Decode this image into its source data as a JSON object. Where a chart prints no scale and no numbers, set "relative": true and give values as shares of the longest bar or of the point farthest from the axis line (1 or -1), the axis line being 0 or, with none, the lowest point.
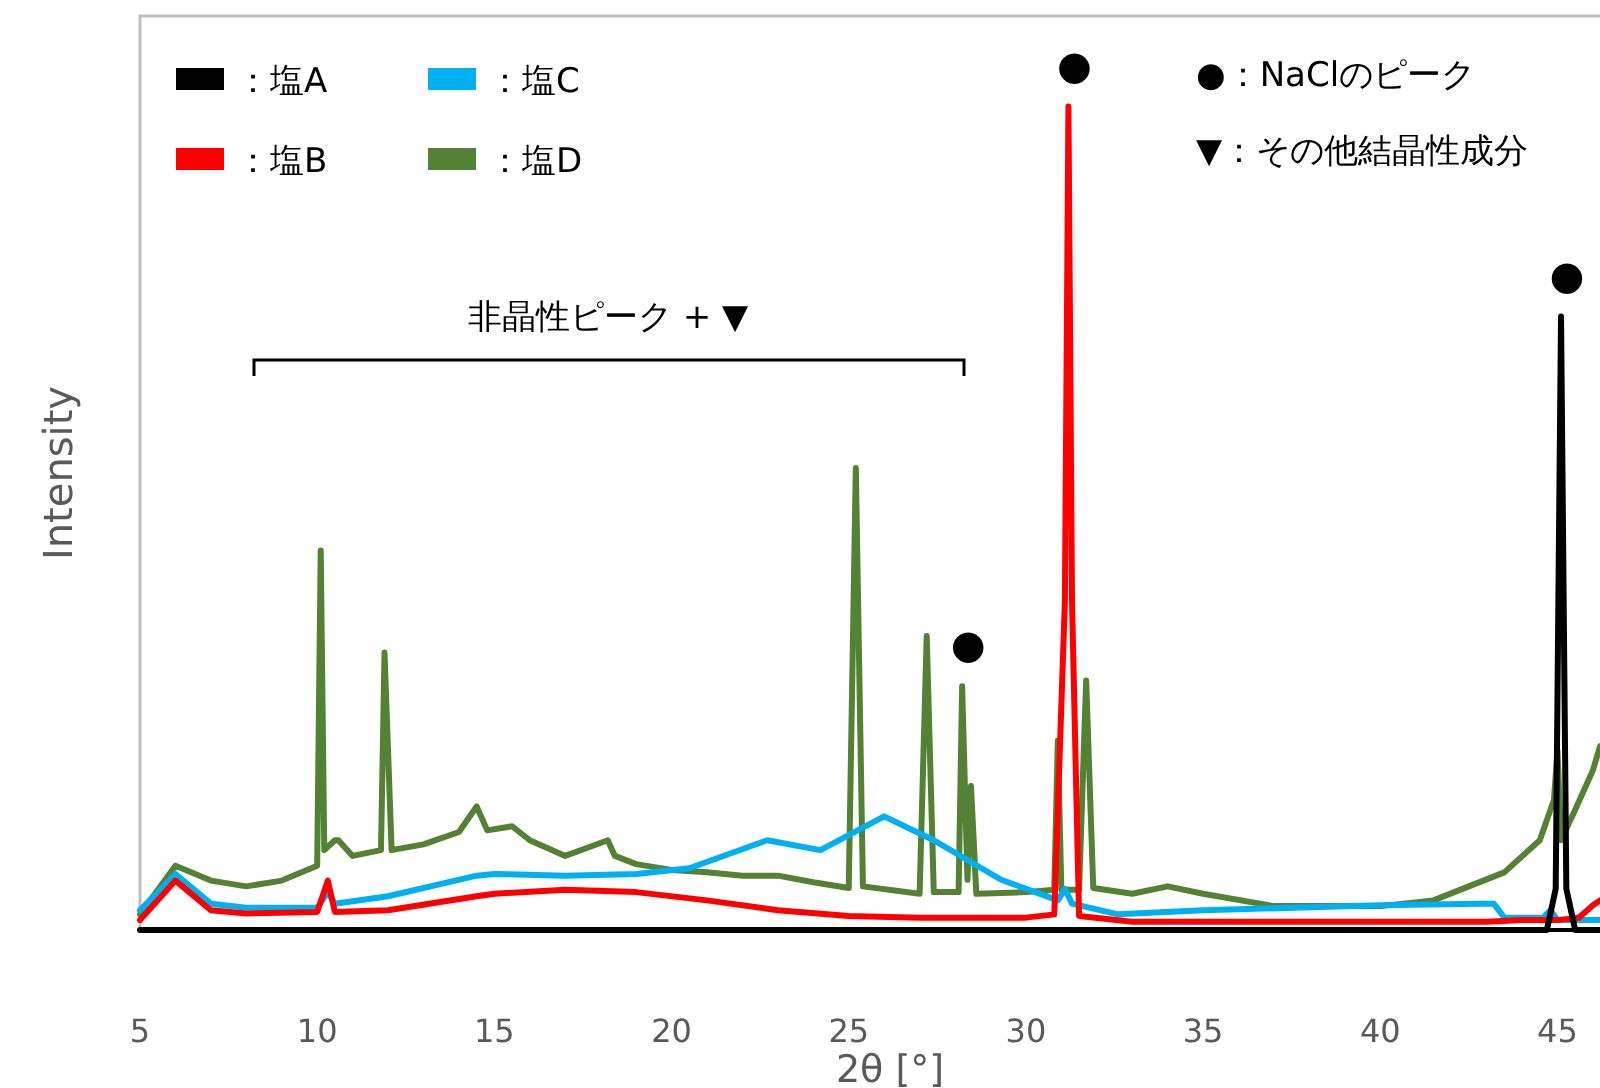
{
  "chart_data": {
    "type": "line",
    "relative": true,
    "xlabel": "2θ [°]",
    "ylabel": "Intensity",
    "xlim": [
      5,
      46.2
    ],
    "xticks": [
      5,
      10,
      15,
      20,
      25,
      30,
      35,
      40,
      45
    ],
    "legend": "top left",
    "grid": false,
    "marker": "none",
    "line_style": "solid",
    "series": [
      {
        "name": "：塩A",
        "color": "#000000",
        "x": [
          5,
          44.7,
          44.95,
          45.1,
          45.25,
          45.5,
          46.2
        ],
        "values": [
          0,
          0,
          0.05,
          0.745,
          0.05,
          0,
          0
        ]
      },
      {
        "name": "：塩B",
        "color": "#ff0000",
        "x": [
          5,
          6,
          7,
          8,
          10,
          10.3,
          10.5,
          12,
          14.5,
          15,
          17,
          19,
          21,
          23,
          25,
          27,
          30,
          30.8,
          31.1,
          31.2,
          31.3,
          31.5,
          33,
          40,
          43,
          44,
          45,
          45.6,
          46,
          46.2
        ],
        "values": [
          0.012,
          0.06,
          0.024,
          0.02,
          0.022,
          0.06,
          0.022,
          0.024,
          0.041,
          0.044,
          0.049,
          0.046,
          0.036,
          0.024,
          0.017,
          0.015,
          0.015,
          0.019,
          0.4,
          1,
          0.4,
          0.017,
          0.01,
          0.01,
          0.01,
          0.012,
          0.012,
          0.015,
          0.03,
          0.036
        ]
      },
      {
        "name": "：塩C",
        "color": "#00b0f0",
        "x": [
          5,
          6,
          7,
          8,
          10,
          10.3,
          10.5,
          12,
          14.5,
          15,
          17,
          19,
          20.5,
          22.7,
          24.2,
          26,
          27.4,
          29.3,
          30.9,
          31.1,
          31.3,
          32.6,
          35,
          40,
          42.8,
          43.2,
          43.5,
          44.6,
          44.8,
          45,
          46.2
        ],
        "values": [
          0.024,
          0.068,
          0.032,
          0.027,
          0.027,
          0.046,
          0.032,
          0.041,
          0.066,
          0.068,
          0.066,
          0.068,
          0.075,
          0.109,
          0.097,
          0.138,
          0.109,
          0.061,
          0.036,
          0.05,
          0.032,
          0.019,
          0.024,
          0.03,
          0.032,
          0.032,
          0.015,
          0.015,
          0.024,
          0.012,
          0.012
        ]
      },
      {
        "name": "：塩D",
        "color": "#548235",
        "x": [
          5,
          6,
          7,
          8,
          9,
          10,
          10.1,
          10.2,
          10.5,
          10.6,
          11,
          11.8,
          11.9,
          12.1,
          13,
          14,
          14.5,
          14.8,
          15.5,
          16,
          17,
          18.2,
          18.4,
          19,
          20,
          21,
          22,
          23,
          24,
          25,
          25.2,
          25.4,
          27,
          27.2,
          27.4,
          28.1,
          28.2,
          28.35,
          28.45,
          28.6,
          30,
          30.8,
          30.9,
          31,
          31.5,
          31.7,
          31.9,
          33,
          34,
          35,
          37,
          40,
          41.5,
          42.5,
          43.5,
          44.5,
          44.9,
          45,
          45.1,
          45.5,
          46,
          46.2
        ],
        "values": [
          0.019,
          0.078,
          0.06,
          0.053,
          0.06,
          0.078,
          0.461,
          0.097,
          0.109,
          0.109,
          0.09,
          0.097,
          0.337,
          0.097,
          0.104,
          0.119,
          0.15,
          0.121,
          0.126,
          0.109,
          0.09,
          0.109,
          0.09,
          0.08,
          0.073,
          0.07,
          0.066,
          0.066,
          0.058,
          0.051,
          0.561,
          0.053,
          0.044,
          0.357,
          0.046,
          0.046,
          0.296,
          0.061,
          0.175,
          0.044,
          0.046,
          0.049,
          0.23,
          0.049,
          0.049,
          0.303,
          0.051,
          0.044,
          0.053,
          0.044,
          0.029,
          0.029,
          0.036,
          0.053,
          0.07,
          0.109,
          0.158,
          0.218,
          0.109,
          0.146,
          0.194,
          0.223
        ]
      }
    ],
    "annotations": [
      {
        "text": "●",
        "x": 31.2,
        "y": 1
      },
      {
        "text": "●",
        "x": 45.1,
        "y": 0.745
      },
      {
        "text": "●",
        "x": 28.2,
        "y": 0.296
      },
      "●：NaClのピーク",
      "▼：その他結晶性成分",
      "非晶性ピーク + ▼"
    ]
  }
}
